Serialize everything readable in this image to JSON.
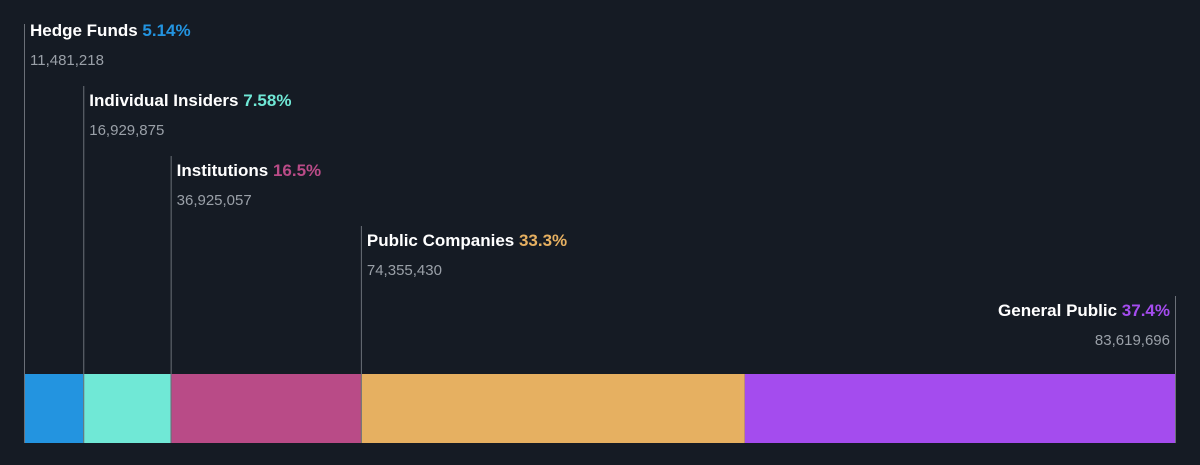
{
  "chart_data": {
    "type": "bar",
    "orientation": "horizontal-stacked",
    "grid": false,
    "legend": "none",
    "categories": [
      "Hedge Funds",
      "Individual Insiders",
      "Institutions",
      "Public Companies",
      "General Public"
    ],
    "series": [
      {
        "label": "Hedge Funds",
        "percent_label": "5.14%",
        "percent": 5.14,
        "shares": 11481218,
        "shares_label": "11,481,218",
        "color": "#2394e0"
      },
      {
        "label": "Individual Insiders",
        "percent_label": "7.58%",
        "percent": 7.58,
        "shares": 16929875,
        "shares_label": "16,929,875",
        "color": "#70e8d6"
      },
      {
        "label": "Institutions",
        "percent_label": "16.5%",
        "percent": 16.5,
        "shares": 36925057,
        "shares_label": "36,925,057",
        "color": "#b94b87"
      },
      {
        "label": "Public Companies",
        "percent_label": "33.3%",
        "percent": 33.3,
        "shares": 74355430,
        "shares_label": "74,355,430",
        "color": "#e6b061"
      },
      {
        "label": "General Public",
        "percent_label": "37.4%",
        "percent": 37.4,
        "shares": 83619696,
        "shares_label": "83,619,696",
        "color": "#a44cee"
      }
    ]
  }
}
